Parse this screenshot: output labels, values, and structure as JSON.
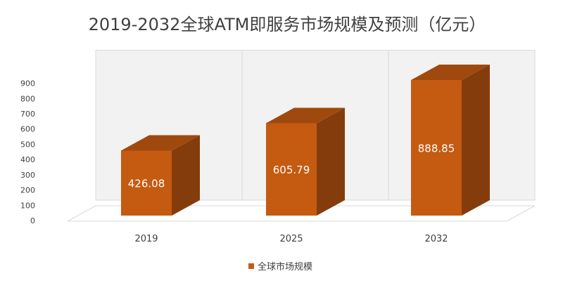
{
  "chart_data": {
    "type": "bar",
    "title": "2019-2032全球ATM即服务市场规模及预测（亿元）",
    "categories": [
      "2019",
      "2025",
      "2032"
    ],
    "series": [
      {
        "name": "全球市场规模",
        "values": [
          426.08,
          605.79,
          888.85
        ],
        "labels": [
          "426.08",
          "605.79",
          "888.85"
        ]
      }
    ],
    "ylim": [
      0,
      900
    ],
    "yticks": [
      "0",
      "100",
      "200",
      "300",
      "400",
      "500",
      "600",
      "700",
      "800",
      "900"
    ],
    "grid": false,
    "legend_position": "bottom",
    "three_d": true,
    "colors": {
      "bar_front": "#c55a11",
      "bar_side": "#843c0c",
      "bar_top": "#a0490e",
      "back_wall": "#f2f2f2",
      "wall_lines": "#d9d9d9"
    }
  }
}
